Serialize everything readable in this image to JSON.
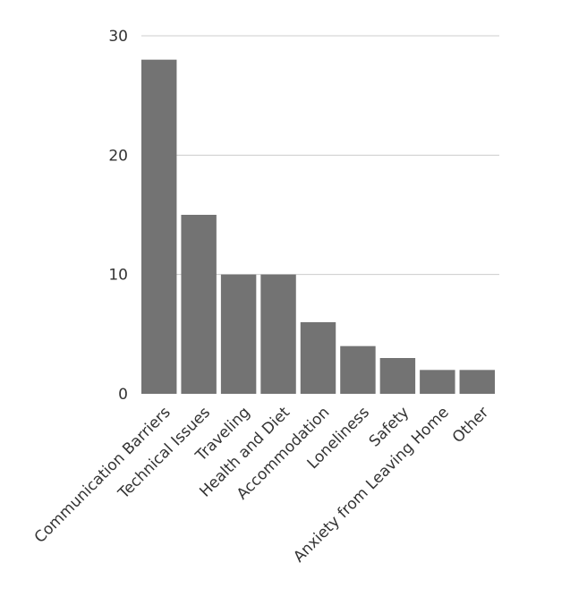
{
  "chart_data": {
    "type": "bar",
    "categories": [
      "Communication Barriers",
      "Technical Issues",
      "Traveling",
      "Health and Diet",
      "Accommodation",
      "Loneliness",
      "Safety",
      "Anxiety from Leaving Home",
      "Other"
    ],
    "values": [
      28,
      15,
      10,
      10,
      6,
      4,
      3,
      2,
      2
    ],
    "yticks": [
      "0",
      "10",
      "20",
      "30"
    ],
    "ylim": [
      0,
      30
    ],
    "grid": true,
    "bar_color": "#737373",
    "title": "",
    "xlabel": "",
    "ylabel": ""
  }
}
